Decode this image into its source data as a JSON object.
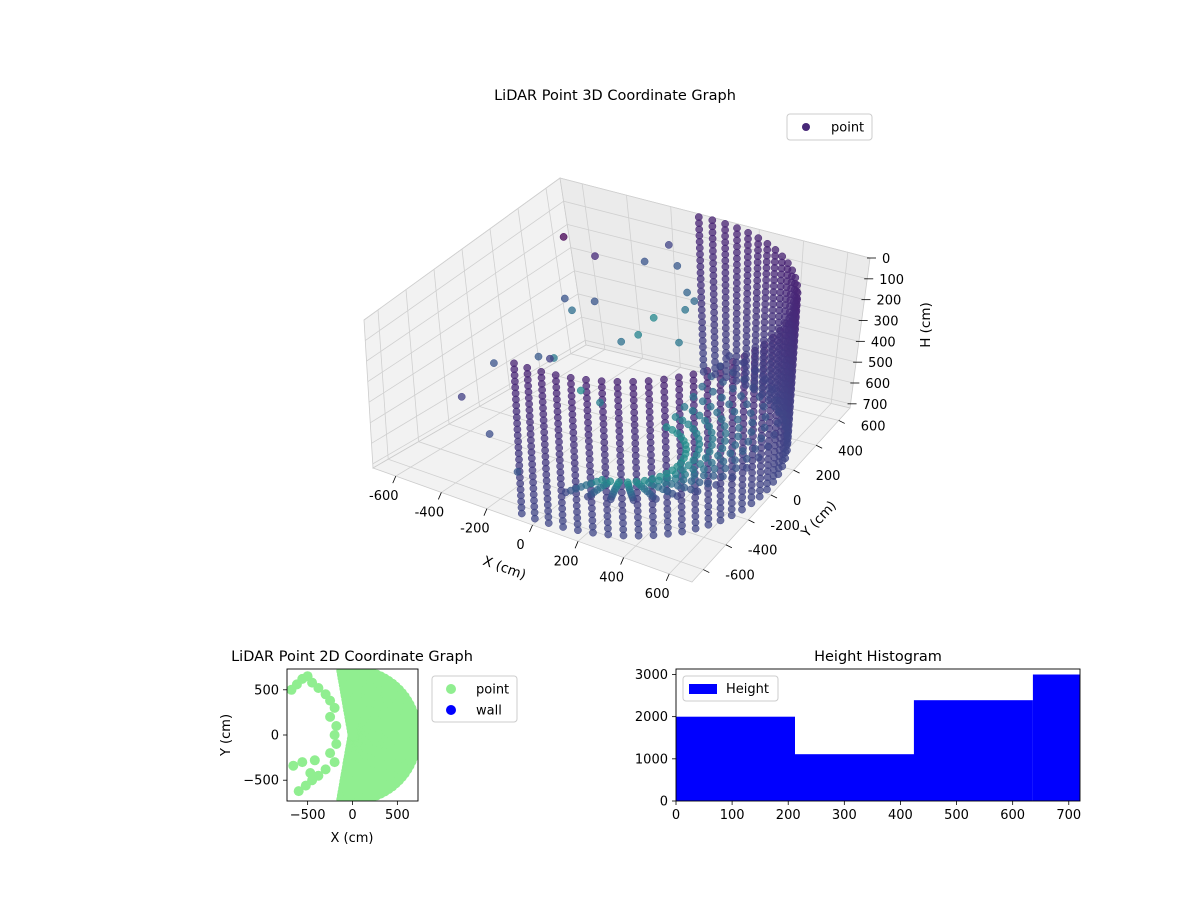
{
  "chart_data": [
    {
      "type": "scatter3d",
      "title": "LiDAR Point 3D Coordinate Graph",
      "xlabel": "X (cm)",
      "ylabel": "Y (cm)",
      "zlabel": "H (cm)",
      "xlim": [
        -700,
        700
      ],
      "ylim": [
        -700,
        700
      ],
      "zlim": [
        0,
        720
      ],
      "z_inverted": true,
      "xticks": [
        -600,
        -400,
        -200,
        0,
        200,
        400,
        600
      ],
      "yticks": [
        -600,
        -400,
        -200,
        0,
        200,
        400,
        600
      ],
      "zticks": [
        0,
        100,
        200,
        300,
        400,
        500,
        600,
        700
      ],
      "colormap": "viridis",
      "legend": {
        "location": "top-right",
        "entries": [
          {
            "label": "point",
            "color": "#482878"
          }
        ]
      },
      "series": [
        {
          "name": "point",
          "description": "cylindrical wall of points (radius ~680, full height) on the +X side",
          "shell": {
            "radius": 680,
            "theta_range_deg": [
              -95,
              95
            ],
            "h_range": [
              0,
              720
            ]
          }
        },
        {
          "name": "point",
          "description": "scattered interior clusters",
          "points": [
            [
              -650,
              600,
              200
            ],
            [
              -600,
              350,
              620
            ],
            [
              -450,
              520,
              200
            ],
            [
              -420,
              250,
              260
            ],
            [
              -500,
              150,
              500
            ],
            [
              -350,
              350,
              300
            ],
            [
              -300,
              120,
              220
            ],
            [
              -200,
              300,
              420
            ],
            [
              -150,
              420,
              100
            ],
            [
              -100,
              520,
              60
            ],
            [
              0,
              420,
              80
            ],
            [
              80,
              360,
              150
            ],
            [
              150,
              300,
              140
            ],
            [
              -250,
              -100,
              320
            ],
            [
              -100,
              -150,
              400
            ],
            [
              50,
              -250,
              360
            ],
            [
              -380,
              -320,
              280
            ],
            [
              -450,
              -450,
              400
            ],
            [
              -300,
              -500,
              500
            ],
            [
              -150,
              -550,
              600
            ],
            [
              100,
              80,
              120
            ],
            [
              200,
              150,
              90
            ],
            [
              250,
              20,
              160
            ],
            [
              -50,
              200,
              300
            ]
          ]
        }
      ]
    },
    {
      "type": "scatter",
      "title": "LiDAR Point 2D Coordinate Graph",
      "xlabel": "X (cm)",
      "ylabel": "Y (cm)",
      "xlim": [
        -730,
        730
      ],
      "ylim": [
        -730,
        730
      ],
      "xticks": [
        -500,
        0,
        500
      ],
      "yticks": [
        -500,
        0,
        500
      ],
      "legend": {
        "location": "outside-right",
        "entries": [
          {
            "label": "point",
            "color": "#90ee90"
          },
          {
            "label": "wall",
            "color": "#0000ff"
          }
        ]
      },
      "series": [
        {
          "name": "point",
          "color": "#90ee90",
          "region": {
            "radius": 720,
            "theta_range_deg": [
              -100,
              100
            ]
          },
          "points": [
            [
              -680,
              500
            ],
            [
              -620,
              560
            ],
            [
              -560,
              620
            ],
            [
              -500,
              650
            ],
            [
              -450,
              580
            ],
            [
              -380,
              520
            ],
            [
              -300,
              450
            ],
            [
              -250,
              380
            ],
            [
              -200,
              300
            ],
            [
              -250,
              200
            ],
            [
              -180,
              100
            ],
            [
              -200,
              0
            ],
            [
              -180,
              -100
            ],
            [
              -250,
              -200
            ],
            [
              -200,
              -300
            ],
            [
              -300,
              -380
            ],
            [
              -380,
              -450
            ],
            [
              -450,
              -500
            ],
            [
              -520,
              -560
            ],
            [
              -600,
              -620
            ],
            [
              -660,
              -340
            ],
            [
              -560,
              -300
            ],
            [
              -470,
              -420
            ],
            [
              -420,
              -280
            ]
          ]
        },
        {
          "name": "wall",
          "color": "#0000ff",
          "points": []
        }
      ]
    },
    {
      "type": "bar",
      "title": "Height Histogram",
      "xlabel": "",
      "ylabel": "",
      "xlim": [
        0,
        720
      ],
      "ylim": [
        0,
        3130
      ],
      "xticks": [
        0,
        100,
        200,
        300,
        400,
        500,
        600,
        700
      ],
      "yticks": [
        0,
        1000,
        2000,
        3000
      ],
      "bin_edges": [
        0,
        212,
        424,
        636,
        720
      ],
      "values": [
        2000,
        1110,
        2390,
        3000
      ],
      "color": "#0000ff",
      "legend": {
        "location": "top-left",
        "entries": [
          {
            "label": "Height",
            "color": "#0000ff"
          }
        ]
      }
    }
  ]
}
